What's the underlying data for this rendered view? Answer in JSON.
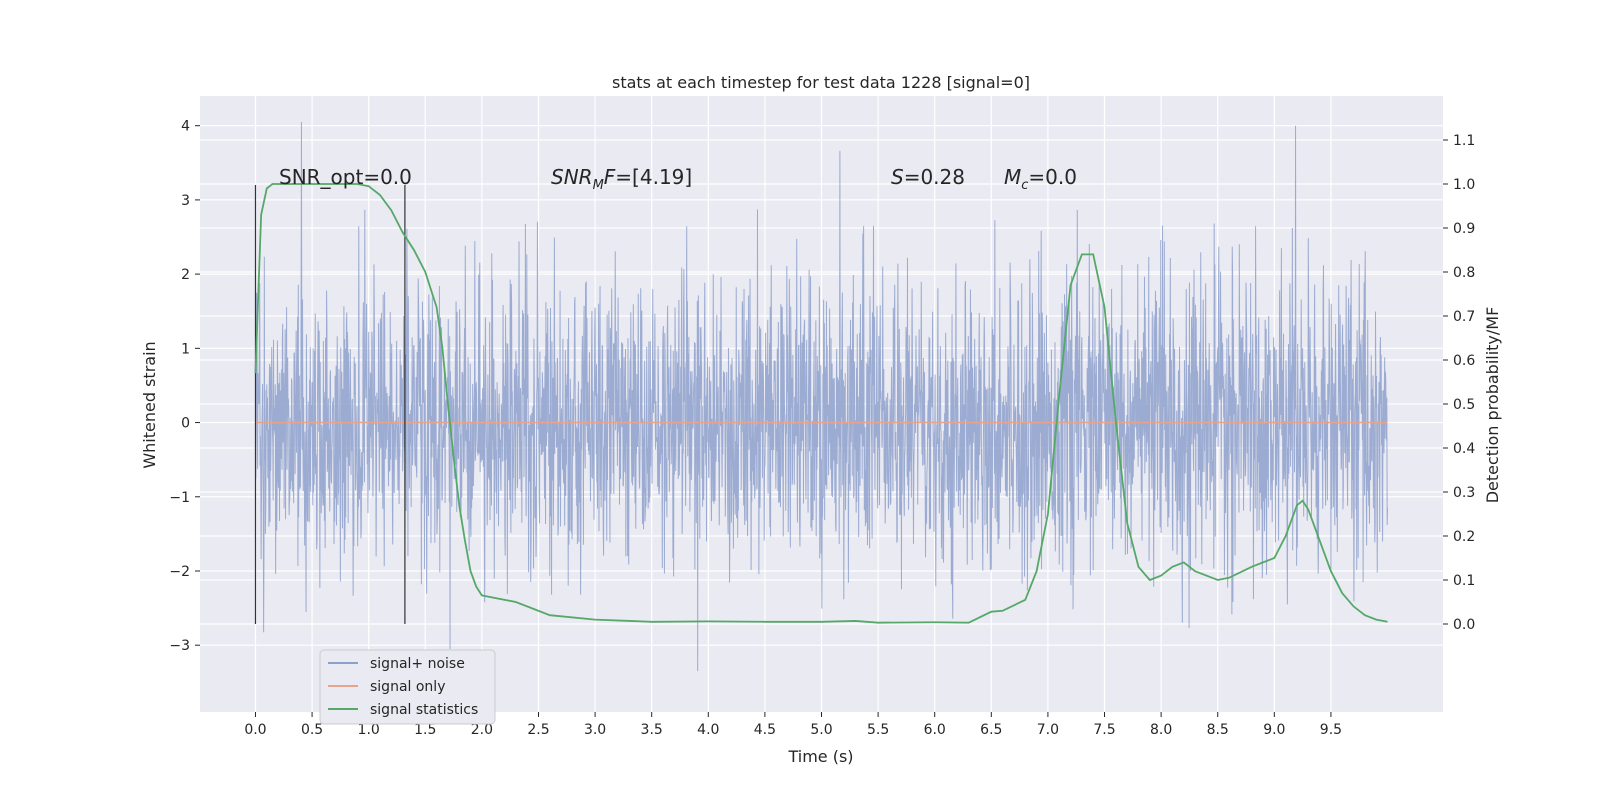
{
  "chart_data": {
    "type": "line",
    "title": "stats at each timestep for test data 1228 [signal=0]",
    "xlabel": "Time (s)",
    "ylabel_left": "Whitened strain",
    "ylabel_right": "Detection probability/MF",
    "x_ticks": [
      "0.0",
      "0.5",
      "1.0",
      "1.5",
      "2.0",
      "2.5",
      "3.0",
      "3.5",
      "4.0",
      "4.5",
      "5.0",
      "5.5",
      "6.0",
      "6.5",
      "7.0",
      "7.5",
      "8.0",
      "8.5",
      "9.0",
      "9.5"
    ],
    "y_left_ticks": [
      "−3",
      "−2",
      "−1",
      "0",
      "1",
      "2",
      "3",
      "4"
    ],
    "y_right_ticks": [
      "0.0",
      "0.1",
      "0.2",
      "0.3",
      "0.4",
      "0.5",
      "0.6",
      "0.7",
      "0.8",
      "0.9",
      "1.0",
      "1.1"
    ],
    "xlim": [
      -0.49,
      10.49
    ],
    "ylim_left": [
      -3.9,
      4.4
    ],
    "ylim_right": [
      -0.2,
      1.2
    ],
    "grid": true,
    "legend_position": "lower-left",
    "annotations": [
      {
        "label": "SNR_opt=0.0",
        "x": 0.2
      },
      {
        "label": "SNR_M F=[4.19]",
        "x": 2.6
      },
      {
        "label": "S=0.28",
        "x": 5.6
      },
      {
        "label": "M_c=0.0",
        "x": 6.6
      }
    ],
    "vertical_markers_x": [
      0.0,
      1.32
    ],
    "series": [
      {
        "name": "signal+ noise",
        "color": "#8da0cb",
        "description_envelope": {
          "typical_range": [
            -1.5,
            1.5
          ],
          "max": 4.05,
          "min": -3.35
        },
        "x_range": [
          0.0,
          10.0
        ]
      },
      {
        "name": "signal only",
        "color": "#e8a48a",
        "x": [
          0.0,
          10.0
        ],
        "y": [
          0.0,
          0.0
        ]
      },
      {
        "name": "signal statistics",
        "color": "#55a868",
        "x": [
          0.0,
          0.05,
          0.1,
          0.15,
          0.2,
          0.3,
          0.5,
          0.7,
          0.9,
          1.0,
          1.1,
          1.2,
          1.3,
          1.4,
          1.5,
          1.6,
          1.65,
          1.7,
          1.75,
          1.8,
          1.85,
          1.9,
          1.95,
          2.0,
          2.1,
          2.3,
          2.6,
          3.0,
          3.5,
          4.0,
          4.5,
          5.0,
          5.3,
          5.5,
          6.0,
          6.3,
          6.5,
          6.6,
          6.8,
          6.9,
          7.0,
          7.1,
          7.2,
          7.3,
          7.4,
          7.5,
          7.6,
          7.7,
          7.8,
          7.9,
          8.0,
          8.1,
          8.2,
          8.3,
          8.5,
          8.6,
          8.8,
          8.9,
          9.0,
          9.1,
          9.2,
          9.25,
          9.3,
          9.4,
          9.5,
          9.6,
          9.7,
          9.8,
          9.9,
          10.0
        ],
        "y": [
          0.57,
          0.93,
          0.99,
          1.0,
          1.0,
          1.0,
          1.0,
          1.0,
          1.0,
          0.995,
          0.975,
          0.94,
          0.89,
          0.85,
          0.8,
          0.72,
          0.63,
          0.5,
          0.38,
          0.27,
          0.19,
          0.12,
          0.085,
          0.065,
          0.06,
          0.05,
          0.02,
          0.01,
          0.005,
          0.006,
          0.005,
          0.005,
          0.007,
          0.003,
          0.004,
          0.003,
          0.028,
          0.03,
          0.055,
          0.12,
          0.25,
          0.52,
          0.77,
          0.84,
          0.84,
          0.72,
          0.46,
          0.23,
          0.13,
          0.1,
          0.11,
          0.13,
          0.14,
          0.12,
          0.1,
          0.105,
          0.13,
          0.14,
          0.15,
          0.2,
          0.27,
          0.28,
          0.26,
          0.19,
          0.12,
          0.07,
          0.04,
          0.02,
          0.01,
          0.005
        ]
      }
    ]
  }
}
